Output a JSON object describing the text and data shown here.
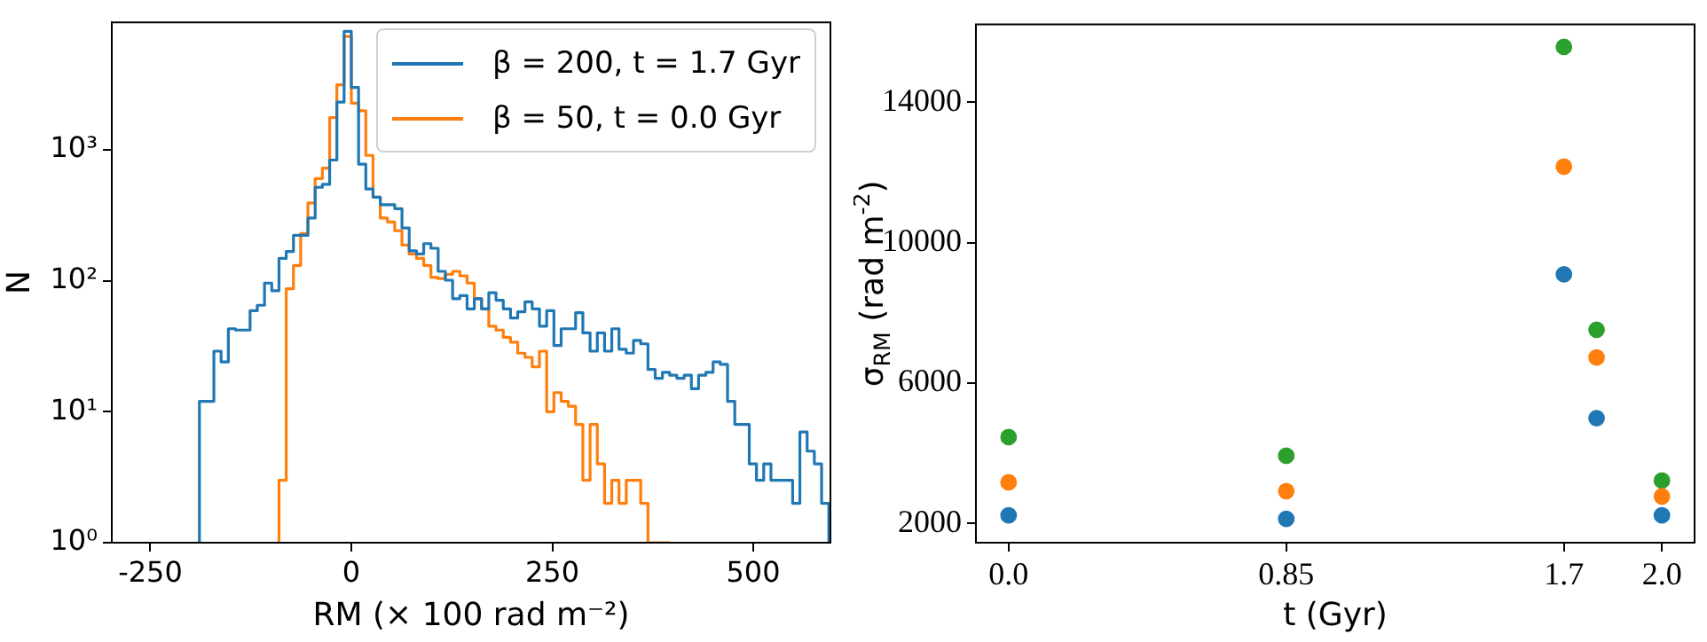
{
  "chart_data": [
    {
      "type": "histogram",
      "xlabel": "RM (× 100 rad m⁻²)",
      "ylabel": "N",
      "bins": [
        -189,
        -180,
        -171,
        -162,
        -153,
        -144,
        -135,
        -126,
        -117,
        -108,
        -99,
        -90,
        -81,
        -72,
        -63,
        -54,
        -45,
        -36,
        -27,
        -18,
        -9,
        0,
        9,
        18,
        27,
        36,
        45,
        54,
        63,
        72,
        81,
        90,
        99,
        108,
        117,
        126,
        135,
        144,
        153,
        162,
        171,
        180,
        189,
        198,
        207,
        216,
        225,
        234,
        243,
        252,
        261,
        270,
        279,
        288,
        297,
        306,
        315,
        324,
        333,
        342,
        351,
        360,
        369,
        378,
        387,
        396,
        405,
        414,
        423,
        432,
        441,
        450,
        459,
        468,
        477,
        486,
        495,
        504,
        513,
        522,
        531,
        540,
        549,
        558,
        567,
        576,
        585,
        594
      ],
      "series": [
        {
          "name": "β = 200, t = 1.7 Gyr",
          "color": "#1f77b4",
          "values": [
            12,
            12,
            29,
            24,
            43,
            42,
            42,
            59,
            65,
            96,
            84,
            148,
            167,
            222,
            222,
            301,
            517,
            544,
            835,
            2310,
            8020,
            2990,
            778,
            502,
            435,
            381,
            381,
            355,
            253,
            169,
            160,
            192,
            177,
            118,
            101,
            73,
            77,
            61,
            73,
            61,
            81,
            71,
            61,
            52,
            58,
            69,
            61,
            45,
            59,
            32,
            43,
            43,
            57,
            40,
            29,
            40,
            29,
            43,
            30,
            28,
            35,
            33,
            21,
            18,
            20,
            19,
            18,
            19,
            15,
            19,
            20,
            24,
            23,
            12,
            8,
            8,
            4,
            3,
            4,
            3,
            3,
            3,
            2,
            7,
            5,
            4,
            2
          ]
        },
        {
          "name": "β = 50, t = 0.0 Gyr",
          "color": "#ff7f0e",
          "bins": [
            -90,
            -81,
            -72,
            -63,
            -54,
            -45,
            -36,
            -27,
            -18,
            -9,
            0,
            9,
            18,
            27,
            36,
            45,
            54,
            63,
            72,
            81,
            90,
            99,
            108,
            117,
            126,
            135,
            144,
            153,
            162,
            171,
            180,
            189,
            198,
            207,
            216,
            225,
            234,
            243,
            252,
            261,
            270,
            279,
            288,
            297,
            306,
            315,
            324,
            333,
            342,
            351,
            360,
            369,
            378,
            387,
            396
          ],
          "values": [
            3,
            87,
            131,
            229,
            393,
            603,
            724,
            1760,
            3140,
            7330,
            2270,
            1990,
            906,
            435,
            301,
            281,
            241,
            187,
            160,
            148,
            131,
            106,
            104,
            112,
            118,
            109,
            96,
            73,
            61,
            45,
            42,
            37,
            34,
            28,
            26,
            22,
            29,
            10,
            14,
            12,
            11,
            8,
            3,
            8,
            4,
            2,
            3,
            2,
            3,
            3,
            2,
            1,
            1,
            1
          ]
        }
      ],
      "xlim": [
        -298,
        596
      ],
      "xticks": [
        -250,
        0,
        250,
        500
      ],
      "ylim": [
        1,
        9400
      ],
      "yticks": [
        {
          "value": 1,
          "label": "10⁰"
        },
        {
          "value": 10,
          "label": "10¹"
        },
        {
          "value": 100,
          "label": "10²"
        },
        {
          "value": 1000,
          "label": "10³"
        }
      ],
      "log": "y",
      "legend": "top right",
      "grid": false,
      "line_style": "solid"
    },
    {
      "type": "scatter",
      "xlabel": "t (Gyr)",
      "ylabel": "σ$_{RM}$ (rad m$^{-2}$)",
      "x": [
        0,
        0.85,
        1.7,
        1.8,
        2.0
      ],
      "series": [
        {
          "color": "#1f77b4",
          "values": [
            2230,
            2130,
            9100,
            5000,
            2230
          ]
        },
        {
          "color": "#ff7f0e",
          "values": [
            3170,
            2920,
            12170,
            6730,
            2770
          ]
        },
        {
          "color": "#2ca02c",
          "values": [
            4460,
            3930,
            15580,
            7520,
            3220
          ]
        }
      ],
      "xlim": [
        -0.1,
        2.1
      ],
      "xticks": [
        {
          "value": 0,
          "label": "0.0"
        },
        0.85,
        1.7,
        {
          "value": 2,
          "label": "2.0"
        }
      ],
      "ylim": [
        1450,
        16220
      ],
      "yticks": [
        2000,
        6000,
        10000,
        14000
      ],
      "marker": "circle",
      "grid": false,
      "legend": false
    }
  ]
}
